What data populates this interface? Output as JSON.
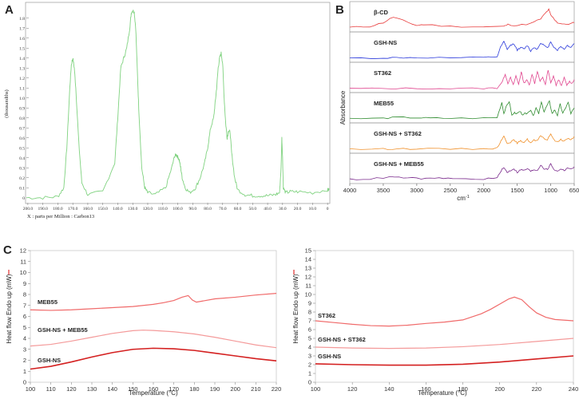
{
  "chart_data": [
    {
      "panel": "A",
      "type": "line",
      "ylabel": "(thousandths)",
      "xlabel": "X : parts per Million : Carbon13",
      "x_ticks": [
        "200.0",
        "190.0",
        "180.0",
        "170.0",
        "160.0",
        "150.0",
        "140.0",
        "130.0",
        "120.0",
        "110.0",
        "100.0",
        "90.0",
        "80.0",
        "70.0",
        "60.0",
        "50.0",
        "40.0",
        "30.0",
        "20.0",
        "10.0",
        "0"
      ],
      "y_ticks": [
        "0",
        "0.1",
        "0.2",
        "0.3",
        "0.4",
        "0.5",
        "0.6",
        "0.7",
        "0.8",
        "0.9",
        "1.0",
        "1.1",
        "1.2",
        "1.3",
        "1.4",
        "1.5",
        "1.6",
        "1.7",
        "1.8"
      ],
      "xlim": [
        201,
        -1
      ],
      "ylim": [
        -0.05,
        1.95
      ],
      "x_reversed": true,
      "grid": false,
      "color": "#7fd27f",
      "series": [
        {
          "x": [
            201,
            190,
            180,
            176,
            174,
            172,
            171,
            170,
            169,
            168,
            166,
            164,
            160,
            150,
            142,
            140,
            138,
            136,
            134,
            132,
            131,
            130,
            129,
            128,
            127,
            126,
            124,
            122,
            120,
            115,
            108,
            104,
            102,
            101,
            100,
            99,
            98,
            97,
            95,
            92,
            88,
            85,
            82,
            80,
            78,
            76,
            75,
            74,
            73,
            72,
            71,
            70,
            69,
            68,
            67,
            66,
            65,
            64,
            62,
            60,
            55,
            50,
            45,
            40,
            35,
            32,
            31,
            30.5,
            30,
            29.5,
            28,
            25,
            20,
            10,
            0,
            -1
          ],
          "y": [
            0,
            0,
            0.01,
            0.1,
            0.5,
            1.1,
            1.33,
            1.4,
            1.3,
            1.1,
            0.55,
            0.15,
            0.03,
            0.06,
            0.35,
            0.8,
            1.3,
            1.4,
            1.5,
            1.7,
            1.85,
            1.88,
            1.86,
            1.7,
            1.3,
            0.9,
            0.3,
            0.1,
            0.05,
            0.03,
            0.1,
            0.3,
            0.42,
            0.43,
            0.41,
            0.38,
            0.3,
            0.2,
            0.1,
            0.05,
            0.1,
            0.2,
            0.35,
            0.5,
            0.7,
            0.8,
            0.95,
            1.1,
            1.3,
            1.4,
            1.45,
            1.35,
            1.0,
            0.75,
            0.6,
            0.68,
            0.65,
            0.45,
            0.2,
            0.08,
            0.03,
            0.02,
            0.02,
            0.02,
            0.03,
            0.05,
            0.3,
            0.6,
            0.4,
            0.1,
            0.05,
            0.06,
            0.06,
            0.05,
            0.08,
            0.08
          ]
        }
      ]
    },
    {
      "panel": "B",
      "type": "line",
      "ylabel": "Absorbance",
      "xlabel": "cm⁻¹",
      "x_ticks": [
        "4000",
        "3500",
        "3000",
        "2500",
        "2000",
        "1500",
        "1000",
        "650"
      ],
      "xlim": [
        4000,
        650
      ],
      "x_reversed": true,
      "grid": false,
      "series": [
        {
          "name": "β-CD",
          "color": "#e83a3a",
          "x": [
            4000,
            3700,
            3500,
            3350,
            3200,
            3000,
            2900,
            2500,
            2000,
            1700,
            1640,
            1500,
            1300,
            1150,
            1080,
            1030,
            1000,
            950,
            900,
            800,
            700,
            650
          ],
          "y": [
            0.05,
            0.1,
            0.3,
            0.6,
            0.4,
            0.15,
            0.2,
            0.1,
            0.08,
            0.1,
            0.2,
            0.15,
            0.25,
            0.5,
            0.8,
            1.0,
            0.7,
            0.5,
            0.3,
            0.2,
            0.25,
            0.3
          ]
        },
        {
          "name": "GSH-NS",
          "color": "#2b3adb",
          "x": [
            4000,
            3500,
            3300,
            3000,
            2500,
            2000,
            1800,
            1750,
            1700,
            1650,
            1600,
            1550,
            1500,
            1450,
            1400,
            1350,
            1300,
            1250,
            1200,
            1150,
            1100,
            1050,
            1000,
            950,
            900,
            850,
            800,
            750,
            700,
            650
          ],
          "y": [
            0.02,
            0.03,
            0.05,
            0.05,
            0.04,
            0.05,
            0.1,
            0.6,
            0.9,
            0.5,
            0.7,
            0.8,
            0.45,
            0.6,
            0.5,
            0.7,
            0.4,
            0.6,
            0.5,
            0.85,
            0.7,
            0.55,
            0.9,
            0.6,
            0.45,
            0.65,
            0.5,
            0.7,
            0.6,
            0.8
          ]
        },
        {
          "name": "ST362",
          "color": "#e0458e",
          "x": [
            4000,
            3500,
            3000,
            2500,
            2000,
            1800,
            1720,
            1680,
            1640,
            1600,
            1560,
            1520,
            1480,
            1440,
            1400,
            1360,
            1320,
            1280,
            1240,
            1200,
            1160,
            1120,
            1080,
            1040,
            1000,
            960,
            920,
            880,
            840,
            800,
            760,
            720,
            680,
            650
          ],
          "y": [
            0.02,
            0.02,
            0.03,
            0.02,
            0.03,
            0.05,
            0.4,
            0.8,
            0.3,
            0.6,
            0.2,
            0.7,
            0.25,
            0.9,
            0.3,
            0.5,
            0.2,
            0.8,
            0.3,
            0.95,
            0.4,
            0.6,
            0.25,
            1.0,
            0.3,
            0.7,
            0.2,
            0.5,
            0.15,
            0.6,
            0.2,
            0.4,
            0.3,
            0.5
          ]
        },
        {
          "name": "MEB55",
          "color": "#2e8b2e",
          "x": [
            4000,
            3500,
            3300,
            3000,
            2800,
            2500,
            2000,
            1800,
            1730,
            1700,
            1660,
            1620,
            1580,
            1540,
            1500,
            1460,
            1420,
            1380,
            1340,
            1300,
            1260,
            1220,
            1180,
            1140,
            1100,
            1060,
            1020,
            980,
            940,
            900,
            860,
            820,
            780,
            740,
            700,
            650
          ],
          "y": [
            0.03,
            0.05,
            0.1,
            0.08,
            0.06,
            0.05,
            0.06,
            0.1,
            0.9,
            0.3,
            0.7,
            0.95,
            0.2,
            0.35,
            0.3,
            0.4,
            0.25,
            0.3,
            0.35,
            0.5,
            0.2,
            0.6,
            0.3,
            0.9,
            0.4,
            0.7,
            0.95,
            0.3,
            0.5,
            0.2,
            0.8,
            0.3,
            0.6,
            0.9,
            0.3,
            0.6
          ]
        },
        {
          "name": "GSH-NS + ST362",
          "color": "#f0902a",
          "x": [
            4000,
            3500,
            3300,
            3000,
            2500,
            2000,
            1800,
            1740,
            1700,
            1650,
            1600,
            1550,
            1500,
            1450,
            1400,
            1350,
            1300,
            1250,
            1200,
            1150,
            1100,
            1050,
            1000,
            950,
            900,
            850,
            800,
            750,
            700,
            650
          ],
          "y": [
            0.02,
            0.03,
            0.05,
            0.04,
            0.03,
            0.04,
            0.08,
            0.5,
            0.7,
            0.35,
            0.4,
            0.5,
            0.35,
            0.45,
            0.4,
            0.55,
            0.35,
            0.5,
            0.45,
            0.75,
            0.6,
            0.5,
            0.85,
            0.5,
            0.4,
            0.55,
            0.45,
            0.6,
            0.5,
            0.7
          ]
        },
        {
          "name": "GSH-NS + MEB55",
          "color": "#7a2a8c",
          "x": [
            4000,
            3700,
            3400,
            3200,
            3000,
            2800,
            2600,
            2400,
            2000,
            1800,
            1740,
            1700,
            1650,
            1600,
            1550,
            1500,
            1450,
            1400,
            1350,
            1300,
            1250,
            1200,
            1150,
            1100,
            1050,
            1000,
            950,
            900,
            850,
            800,
            750,
            700,
            650
          ],
          "y": [
            0.03,
            0.05,
            0.15,
            0.12,
            0.08,
            0.06,
            0.1,
            0.05,
            0.05,
            0.1,
            0.5,
            0.65,
            0.4,
            0.5,
            0.6,
            0.4,
            0.55,
            0.5,
            0.6,
            0.45,
            0.55,
            0.5,
            0.8,
            0.6,
            0.55,
            0.85,
            0.55,
            0.45,
            0.6,
            0.5,
            0.65,
            0.55,
            0.7
          ]
        }
      ]
    },
    {
      "panel": "C",
      "type": "line",
      "ylabel": "Heat flow Endo up (mW)",
      "xlabel": "Temperature (°C)",
      "x_ticks": [
        "100",
        "110",
        "120",
        "130",
        "140",
        "150",
        "160",
        "170",
        "180",
        "190",
        "200",
        "210",
        "220"
      ],
      "y_ticks": [
        "0",
        "1",
        "2",
        "3",
        "4",
        "5",
        "6",
        "7",
        "8",
        "9",
        "10",
        "11",
        "12"
      ],
      "xlim": [
        100,
        220
      ],
      "ylim": [
        0,
        12
      ],
      "grid": false,
      "series": [
        {
          "name": "MEB55",
          "color": "#f06a6a",
          "x": [
            100,
            110,
            120,
            130,
            140,
            150,
            160,
            165,
            170,
            174,
            177,
            179,
            181,
            184,
            190,
            200,
            210,
            220
          ],
          "y": [
            6.6,
            6.55,
            6.6,
            6.7,
            6.8,
            6.9,
            7.1,
            7.25,
            7.45,
            7.75,
            7.9,
            7.5,
            7.3,
            7.4,
            7.6,
            7.75,
            7.95,
            8.1
          ]
        },
        {
          "name": "GSH-NS + MEB55",
          "color": "#f49a9a",
          "x": [
            100,
            110,
            120,
            130,
            140,
            150,
            155,
            160,
            170,
            180,
            190,
            200,
            210,
            220
          ],
          "y": [
            3.3,
            3.45,
            3.75,
            4.1,
            4.45,
            4.7,
            4.75,
            4.72,
            4.6,
            4.4,
            4.1,
            3.75,
            3.4,
            3.15
          ]
        },
        {
          "name": "GSH-NS",
          "color": "#d42020",
          "x": [
            100,
            110,
            120,
            130,
            140,
            150,
            160,
            170,
            180,
            190,
            200,
            210,
            220
          ],
          "y": [
            1.2,
            1.45,
            1.85,
            2.3,
            2.7,
            3.0,
            3.1,
            3.05,
            2.9,
            2.65,
            2.4,
            2.15,
            1.95
          ]
        }
      ]
    },
    {
      "panel": "C2",
      "type": "line",
      "ylabel": "Heat flow Endo up (mW)",
      "xlabel": "Temperature (°C)",
      "x_ticks": [
        "100",
        "120",
        "140",
        "160",
        "180",
        "200",
        "220",
        "240"
      ],
      "y_ticks": [
        "0",
        "1",
        "2",
        "3",
        "4",
        "5",
        "6",
        "7",
        "8",
        "9",
        "10",
        "11",
        "12",
        "13",
        "14",
        "15"
      ],
      "xlim": [
        100,
        240
      ],
      "ylim": [
        0,
        15
      ],
      "grid": false,
      "series": [
        {
          "name": "ST362",
          "color": "#f06a6a",
          "x": [
            100,
            110,
            120,
            130,
            140,
            150,
            160,
            170,
            180,
            190,
            195,
            200,
            205,
            208,
            212,
            216,
            220,
            225,
            230,
            240
          ],
          "y": [
            7.0,
            6.8,
            6.6,
            6.45,
            6.4,
            6.5,
            6.7,
            6.85,
            7.1,
            7.8,
            8.3,
            8.9,
            9.5,
            9.7,
            9.4,
            8.6,
            7.9,
            7.4,
            7.15,
            7.0
          ]
        },
        {
          "name": "GSH-NS + ST362",
          "color": "#f49a9a",
          "x": [
            100,
            120,
            140,
            160,
            180,
            200,
            220,
            240
          ],
          "y": [
            4.0,
            3.9,
            3.85,
            3.9,
            4.05,
            4.3,
            4.65,
            5.0
          ]
        },
        {
          "name": "GSH-NS",
          "color": "#d42020",
          "x": [
            100,
            120,
            140,
            160,
            180,
            200,
            220,
            240
          ],
          "y": [
            2.1,
            2.0,
            1.95,
            1.95,
            2.05,
            2.3,
            2.65,
            3.0
          ]
        }
      ]
    }
  ],
  "panels": {
    "a": "A",
    "b": "B",
    "c": "C"
  },
  "text": {
    "a_ylabel": "(thousandths)",
    "a_xlabel": "X : parts per Million : Carbon13",
    "b_ylabel": "Absorbance",
    "b_xlabel_base": "cm",
    "b_xlabel_sup": "-1",
    "c_ylabel": "Heat flow Endo up (mW)",
    "c_xlabel": "Temperature (°C)",
    "c2_ylabel": "Heat flow Endo up (mW)",
    "c2_xlabel": "Temperature (°C)",
    "b_series": [
      "β-CD",
      "GSH-NS",
      "ST362",
      "MEB55",
      "GSH-NS + ST362",
      "GSH-NS + MEB55"
    ],
    "c_series": [
      "MEB55",
      "GSH-NS + MEB55",
      "GSH-NS"
    ],
    "c2_series": [
      "ST362",
      "GSH-NS + ST362",
      "GSH-NS"
    ]
  }
}
